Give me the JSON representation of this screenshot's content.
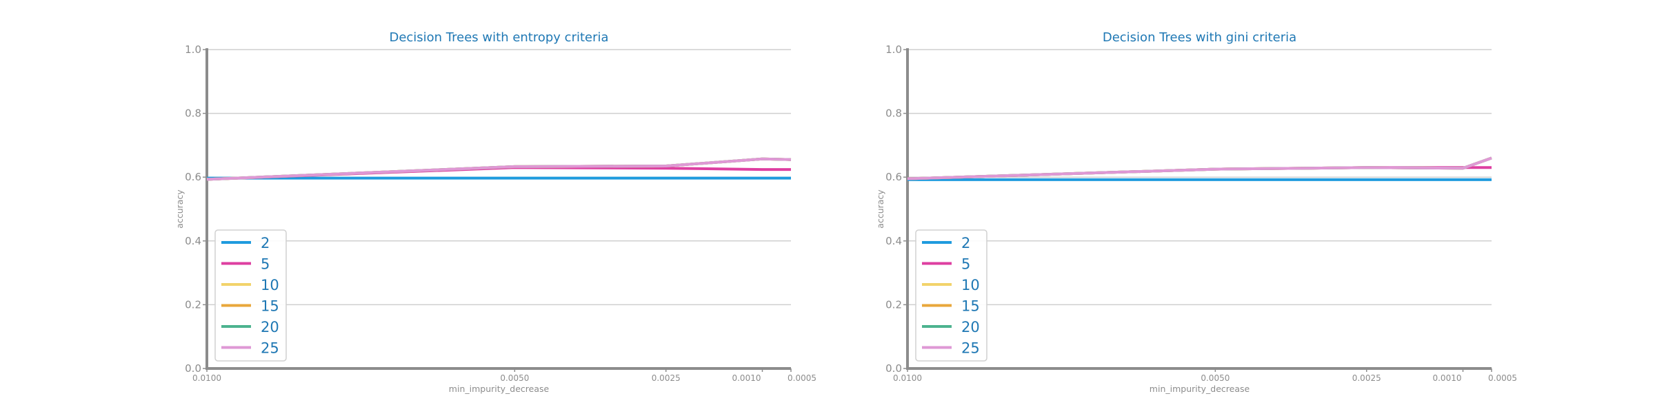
{
  "chart_data": [
    {
      "type": "line",
      "title": "Decision Trees with entropy criteria",
      "xlabel": "min_impurity_decrease",
      "ylabel": "accuracy",
      "x": [
        0.01,
        0.005,
        0.0025,
        0.001,
        0.0005
      ],
      "x_tick_labels": [
        "0.0100",
        "0.0050",
        "0.0025",
        "0.0010",
        "0.0005"
      ],
      "x_axis_reversed": true,
      "ylim": [
        0.0,
        1.0
      ],
      "y_tick_labels": [
        "0.0",
        "0.2",
        "0.4",
        "0.6",
        "0.8",
        "1.0"
      ],
      "grid": "horizontal",
      "legend_position": "lower-left",
      "series": [
        {
          "name": "2",
          "color": "#1f9bde",
          "values": [
            0.597,
            0.597,
            0.597,
            0.597,
            0.597
          ]
        },
        {
          "name": "5",
          "color": "#de3fa1",
          "values": [
            0.593,
            0.63,
            0.628,
            0.624,
            0.624
          ]
        },
        {
          "name": "10",
          "color": "#f2d36b",
          "values": [
            0.593,
            0.633,
            0.635,
            0.657,
            0.655
          ]
        },
        {
          "name": "15",
          "color": "#e8a73c",
          "values": [
            0.593,
            0.633,
            0.635,
            0.657,
            0.655
          ]
        },
        {
          "name": "20",
          "color": "#4db38f",
          "values": [
            0.593,
            0.633,
            0.635,
            0.657,
            0.655
          ]
        },
        {
          "name": "25",
          "color": "#df98d5",
          "values": [
            0.593,
            0.633,
            0.635,
            0.657,
            0.655
          ]
        }
      ]
    },
    {
      "type": "line",
      "title": "Decision Trees with gini criteria",
      "xlabel": "min_impurity_decrease",
      "ylabel": "accuracy",
      "x": [
        0.01,
        0.005,
        0.0025,
        0.001,
        0.0005
      ],
      "x_tick_labels": [
        "0.0100",
        "0.0050",
        "0.0025",
        "0.0010",
        "0.0005"
      ],
      "x_axis_reversed": true,
      "ylim": [
        0.0,
        1.0
      ],
      "y_tick_labels": [
        "0.0",
        "0.2",
        "0.4",
        "0.6",
        "0.8",
        "1.0"
      ],
      "grid": "horizontal",
      "legend_position": "lower-left",
      "series": [
        {
          "name": "2",
          "color": "#1f9bde",
          "values": [
            0.592,
            0.592,
            0.592,
            0.592,
            0.592
          ]
        },
        {
          "name": "5",
          "color": "#de3fa1",
          "values": [
            0.595,
            0.625,
            0.63,
            0.63,
            0.63
          ]
        },
        {
          "name": "10",
          "color": "#f2d36b",
          "values": [
            0.595,
            0.625,
            0.63,
            0.628,
            0.66
          ]
        },
        {
          "name": "15",
          "color": "#e8a73c",
          "values": [
            0.595,
            0.625,
            0.63,
            0.628,
            0.66
          ]
        },
        {
          "name": "20",
          "color": "#4db38f",
          "values": [
            0.595,
            0.625,
            0.63,
            0.628,
            0.66
          ]
        },
        {
          "name": "25",
          "color": "#df98d5",
          "values": [
            0.595,
            0.625,
            0.63,
            0.628,
            0.66
          ]
        }
      ]
    }
  ]
}
